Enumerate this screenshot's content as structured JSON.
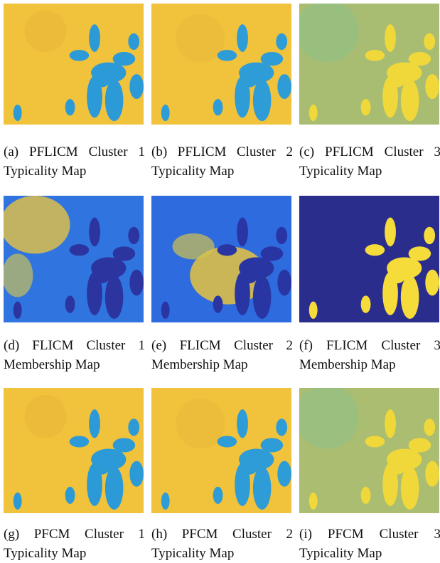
{
  "figure": {
    "panels": [
      {
        "caption": "(a) PFLICM Cluster 1 Typicality Map"
      },
      {
        "caption": "(b) PFLICM Cluster 2 Typicality Map"
      },
      {
        "caption": "(c) PFLICM Cluster 3 Typicality Map"
      },
      {
        "caption": "(d) FLICM Cluster 1 Membership Map"
      },
      {
        "caption": "(e) FLICM Cluster 2 Membership Map"
      },
      {
        "caption": "(f) FLICM Cluster 3 Membership Map"
      },
      {
        "caption": "(g) PFCM Cluster 1 Typicality Map"
      },
      {
        "caption": "(h) PFCM Cluster 2 Typicality Map"
      },
      {
        "caption": "(i) PFCM Cluster 3 Typicality Map"
      }
    ]
  }
}
